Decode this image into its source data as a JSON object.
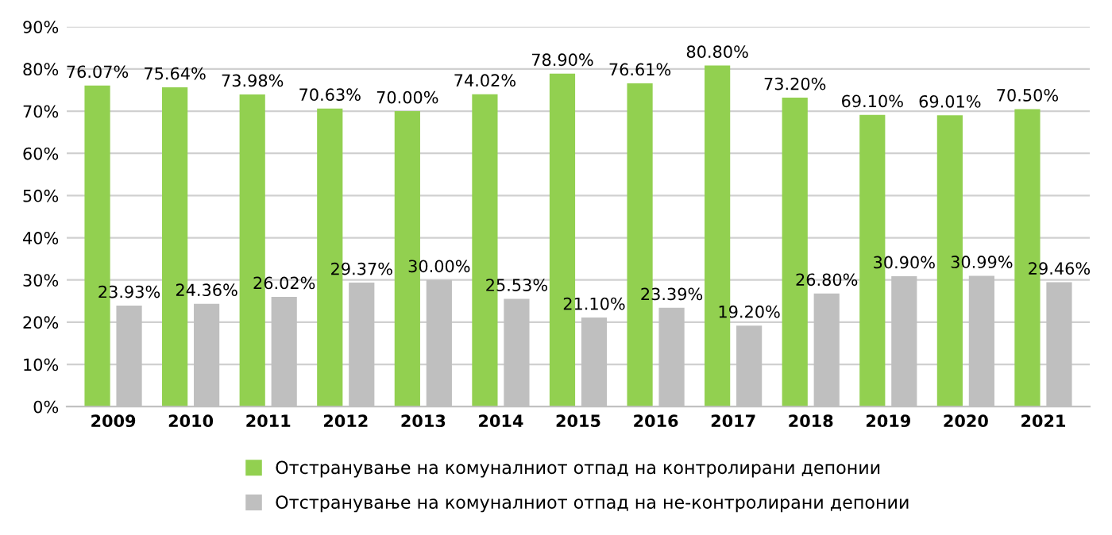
{
  "chart_data": {
    "type": "bar",
    "categories": [
      "2009",
      "2010",
      "2011",
      "2012",
      "2013",
      "2014",
      "2015",
      "2016",
      "2017",
      "2018",
      "2019",
      "2020",
      "2021"
    ],
    "series": [
      {
        "name": "Отстранување на комуналниот отпад на контролирани депонии",
        "color": "#92d050",
        "values": [
          76.07,
          75.64,
          73.98,
          70.63,
          70.0,
          74.02,
          78.9,
          76.61,
          80.8,
          73.2,
          69.1,
          69.01,
          70.5
        ],
        "value_labels": [
          "76.07%",
          "75.64%",
          "73.98%",
          "70.63%",
          "70.00%",
          "74.02%",
          "78.90%",
          "76.61%",
          "80.80%",
          "73.20%",
          "69.10%",
          "69.01%",
          "70.50%"
        ]
      },
      {
        "name": "Отстранување на комуналниот отпад на не-контролирани депонии",
        "color": "#bfbfbf",
        "values": [
          23.93,
          24.36,
          26.02,
          29.37,
          30.0,
          25.53,
          21.1,
          23.39,
          19.2,
          26.8,
          30.9,
          30.99,
          29.46
        ],
        "value_labels": [
          "23.93%",
          "24.36%",
          "26.02%",
          "29.37%",
          "30.00%",
          "25.53%",
          "21.10%",
          "23.39%",
          "19.20%",
          "26.80%",
          "30.90%",
          "30.99%",
          "29.46%"
        ]
      }
    ],
    "ylim": [
      0,
      90
    ],
    "yticks": [
      {
        "value": 0,
        "label": "0%"
      },
      {
        "value": 10,
        "label": "10%"
      },
      {
        "value": 20,
        "label": "20%"
      },
      {
        "value": 30,
        "label": "30%"
      },
      {
        "value": 40,
        "label": "40%"
      },
      {
        "value": 50,
        "label": "50%"
      },
      {
        "value": 60,
        "label": "60%"
      },
      {
        "value": 70,
        "label": "70%"
      },
      {
        "value": 80,
        "label": "80%"
      },
      {
        "value": 90,
        "label": "90%"
      }
    ],
    "grid": "y",
    "legend": "bottom"
  }
}
